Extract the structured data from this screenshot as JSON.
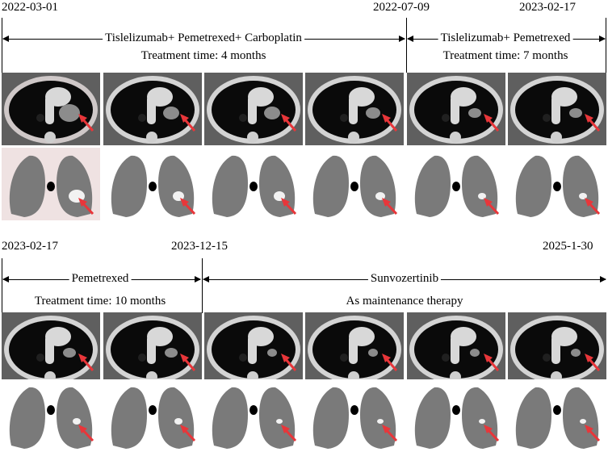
{
  "top": {
    "dates": [
      "2022-03-01",
      "2022-07-09",
      "2023-02-17"
    ],
    "treatments": [
      {
        "name": "Tislelizumab+ Pemetrexed+ Carboplatin",
        "duration": "Treatment time: 4 months"
      },
      {
        "name": "Tislelizumab+ Pemetrexed",
        "duration": "Treatment time: 7 months"
      }
    ]
  },
  "bottom": {
    "dates": [
      "2023-02-17",
      "2023-12-15",
      "2025-1-30"
    ],
    "treatments": [
      {
        "name": "Pemetrexed",
        "duration": "Treatment time: 10 months"
      },
      {
        "name": "Sunvozertinib",
        "duration": "As maintenance therapy"
      }
    ]
  },
  "colors": {
    "arrow": "#e8363a",
    "mediastinal_bg": "#000000",
    "lung_window_bg": "#ffffff",
    "first_scan_tint": "#efe2e2"
  },
  "icons": {
    "lesion_marker": "red-arrow-icon"
  }
}
